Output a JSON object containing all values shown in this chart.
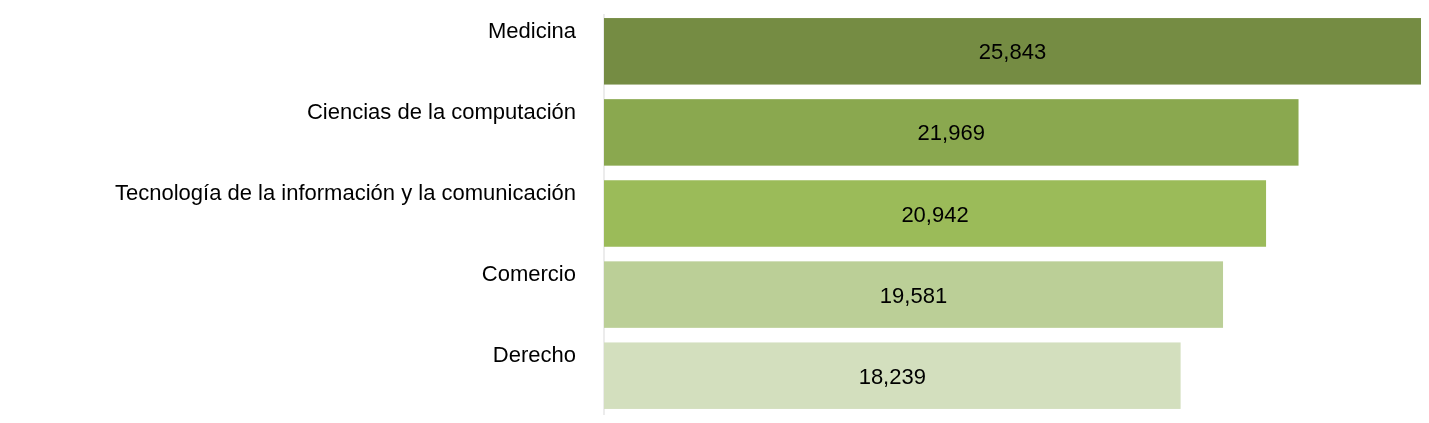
{
  "chart_data": {
    "type": "bar",
    "orientation": "horizontal",
    "categories": [
      "Medicina",
      "Ciencias de la computación",
      "Tecnología de la información y la comunicación",
      "Comercio",
      "Derecho"
    ],
    "values": [
      25843,
      21969,
      20942,
      19581,
      18239
    ],
    "colors": [
      "#758c43",
      "#8aa84f",
      "#9bbb59",
      "#bbcf97",
      "#d3dfbe"
    ],
    "value_labels": [
      "25,843",
      "21,969",
      "20,942",
      "19,581",
      "18,239"
    ]
  }
}
